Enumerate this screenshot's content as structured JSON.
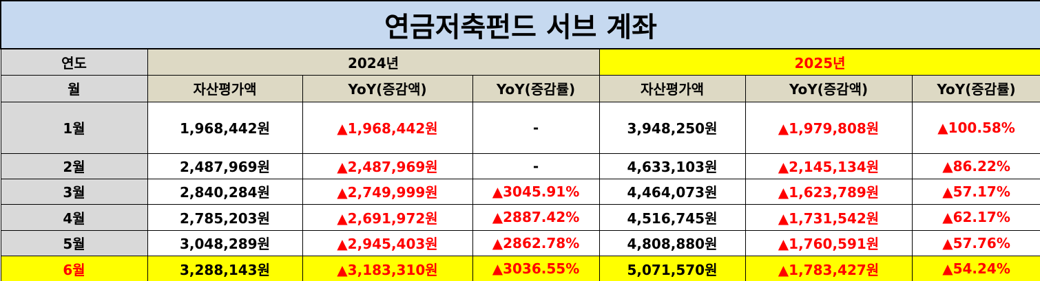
{
  "title": "연금저축펀드 서브 계좌",
  "table": {
    "year_header": {
      "label": "연도",
      "years": [
        "2024년",
        "2025년"
      ]
    },
    "columns": {
      "label": "월",
      "headers": [
        "자산평가액",
        "YoY(증감액)",
        "YoY(증감률)",
        "자산평가액",
        "YoY(증감액)",
        "YoY(증감률)"
      ]
    },
    "rows": [
      [
        "1월",
        "1,968,442원",
        "▲1,968,442원",
        "-",
        "3,948,250원",
        "▲1,979,808원",
        "▲100.58%"
      ],
      [
        "2월",
        "2,487,969원",
        "▲2,487,969원",
        "-",
        "4,633,103원",
        "▲2,145,134원",
        "▲86.22%"
      ],
      [
        "3월",
        "2,840,284원",
        "▲2,749,999원",
        "▲3045.91%",
        "4,464,073원",
        "▲1,623,789원",
        "▲57.17%"
      ],
      [
        "4월",
        "2,785,203원",
        "▲2,691,972원",
        "▲2887.42%",
        "4,516,745원",
        "▲1,731,542원",
        "▲62.17%"
      ],
      [
        "5월",
        "3,048,289원",
        "▲2,945,403원",
        "▲2862.78%",
        "4,808,880원",
        "▲1,760,591원",
        "▲57.76%"
      ],
      [
        "6월",
        "3,288,143원",
        "▲3,183,310원",
        "▲3036.55%",
        "5,071,570원",
        "▲1,783,427원",
        "▲54.24%"
      ]
    ]
  }
}
